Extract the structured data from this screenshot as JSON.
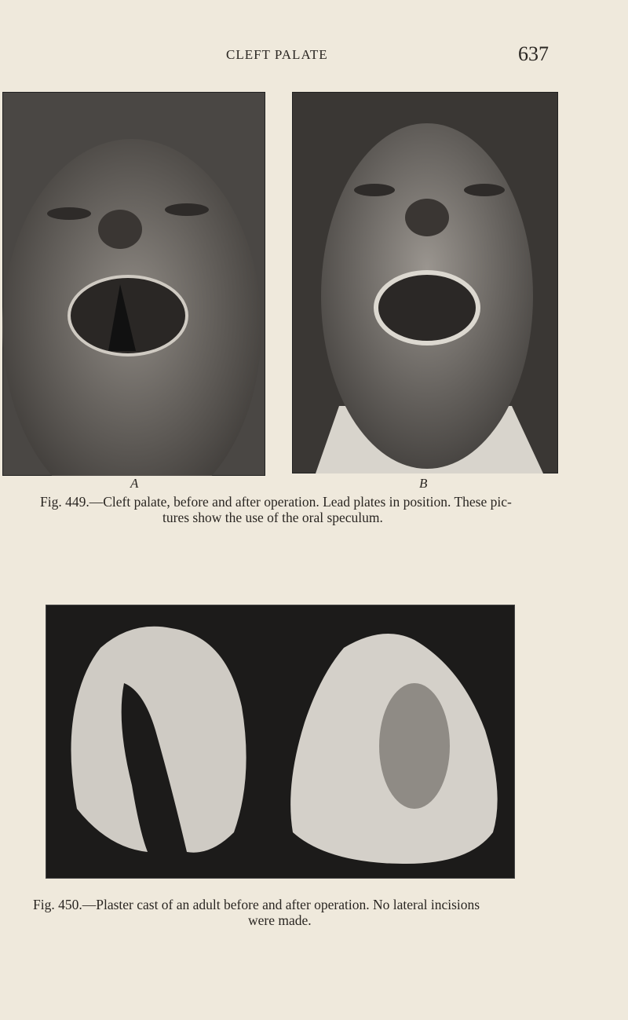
{
  "header": {
    "title": "CLEFT PALATE",
    "page_number": "637"
  },
  "figures": [
    {
      "panels": [
        {
          "label": "A"
        },
        {
          "label": "B"
        }
      ],
      "caption_lines": [
        "Fig. 449.—Cleft palate, before and after operation. Lead plates in position. These pic-",
        "tures show the use of the oral speculum."
      ]
    },
    {
      "caption_lines": [
        "Fig. 450.—Plaster cast of an adult before and after operation. No lateral incisions",
        "were made."
      ]
    }
  ]
}
